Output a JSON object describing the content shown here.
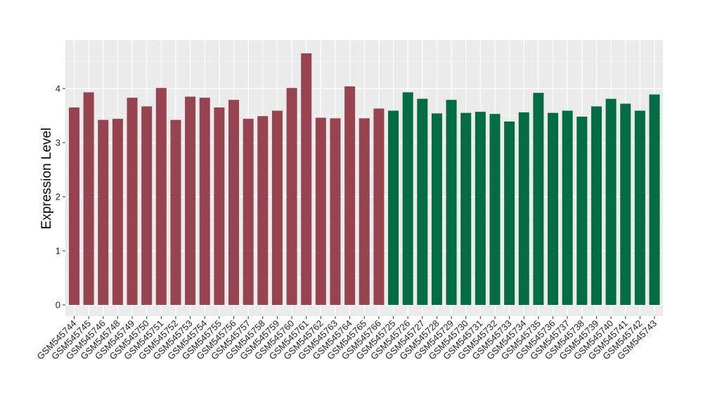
{
  "chart_data": {
    "type": "bar",
    "ylabel": "Expression Level",
    "xlabel": "",
    "title": "",
    "ylim": [
      -0.15,
      4.85
    ],
    "yticks": [
      0,
      1,
      2,
      3,
      4
    ],
    "ytick_labels": [
      "0",
      "1",
      "2",
      "3",
      "4"
    ],
    "grid": true,
    "background": "#EBEBEB",
    "categories": [
      "GSM545744",
      "GSM545745",
      "GSM545746",
      "GSM545748",
      "GSM545749",
      "GSM545750",
      "GSM545751",
      "GSM545752",
      "GSM545753",
      "GSM545754",
      "GSM545755",
      "GSM545756",
      "GSM545757",
      "GSM545758",
      "GSM545759",
      "GSM545760",
      "GSM545761",
      "GSM545762",
      "GSM545763",
      "GSM545764",
      "GSM545765",
      "GSM545766",
      "GSM545725",
      "GSM545726",
      "GSM545727",
      "GSM545728",
      "GSM545729",
      "GSM545730",
      "GSM545731",
      "GSM545732",
      "GSM545733",
      "GSM545734",
      "GSM545735",
      "GSM545736",
      "GSM545737",
      "GSM545738",
      "GSM545739",
      "GSM545740",
      "GSM545741",
      "GSM545742",
      "GSM545743"
    ],
    "values": [
      3.65,
      3.93,
      3.42,
      3.44,
      3.83,
      3.67,
      4.01,
      3.42,
      3.85,
      3.83,
      3.65,
      3.79,
      3.44,
      3.49,
      3.59,
      4.01,
      4.65,
      3.46,
      3.45,
      4.04,
      3.45,
      3.63,
      3.59,
      3.93,
      3.81,
      3.54,
      3.79,
      3.55,
      3.57,
      3.53,
      3.39,
      3.56,
      3.92,
      3.55,
      3.59,
      3.48,
      3.67,
      3.81,
      3.72,
      3.59,
      3.89
    ],
    "bar_colors": [
      "#984350",
      "#984350",
      "#984350",
      "#984350",
      "#984350",
      "#984350",
      "#984350",
      "#984350",
      "#984350",
      "#984350",
      "#984350",
      "#984350",
      "#984350",
      "#984350",
      "#984350",
      "#984350",
      "#984350",
      "#984350",
      "#984350",
      "#984350",
      "#984350",
      "#984350",
      "#036B45",
      "#036B45",
      "#036B45",
      "#036B45",
      "#036B45",
      "#036B45",
      "#036B45",
      "#036B45",
      "#036B45",
      "#036B45",
      "#036B45",
      "#036B45",
      "#036B45",
      "#036B45",
      "#036B45",
      "#036B45",
      "#036B45",
      "#036B45",
      "#036B45"
    ]
  }
}
